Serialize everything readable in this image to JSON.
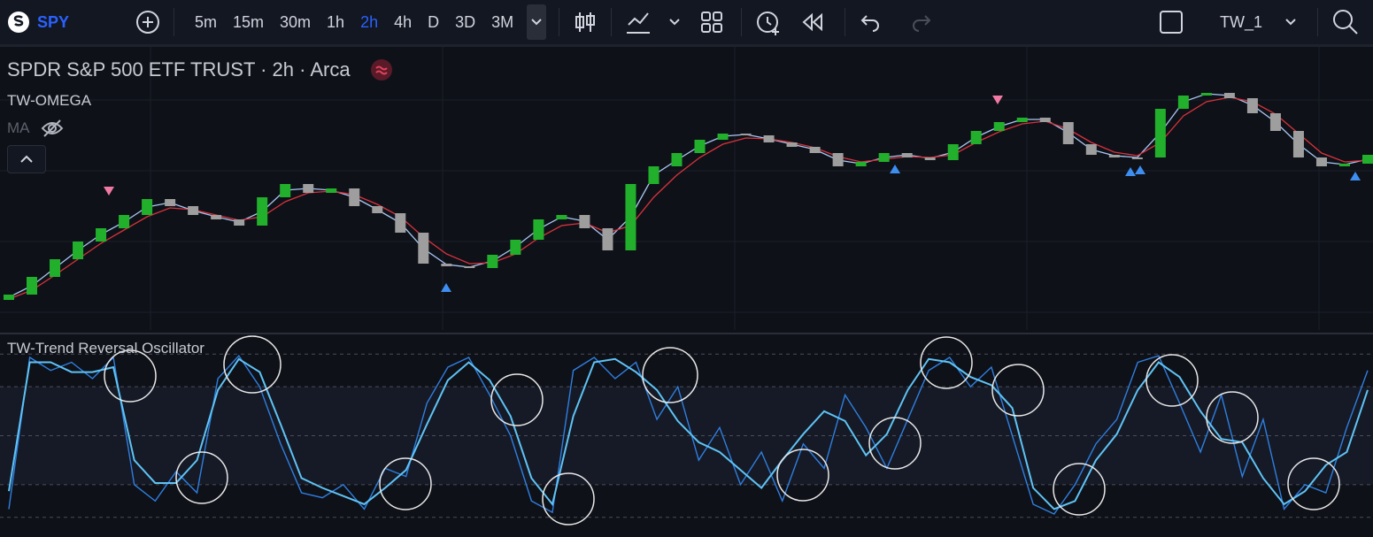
{
  "toolbar": {
    "symbol": "SPY",
    "intervals": [
      "5m",
      "15m",
      "30m",
      "1h",
      "2h",
      "4h",
      "D",
      "3D",
      "3M"
    ],
    "layout": "TW_1"
  },
  "legend": {
    "title": "SPDR S&P 500 ETF TRUST · 2h · Arca",
    "indicator": "TW-OMEGA",
    "ma": "MA",
    "oscillator": "TW-Trend Reversal Oscillator"
  },
  "chart_data": [
    {
      "type": "candlestick",
      "up_color": "#22b02c",
      "down_color": "#9e9e9e",
      "ylim": [
        0,
        300
      ],
      "open": [
        14,
        20,
        40,
        60,
        80,
        95,
        110,
        128,
        120,
        110,
        105,
        98,
        130,
        145,
        135,
        140,
        120,
        112,
        90,
        55,
        52,
        50,
        65,
        82,
        105,
        110,
        95,
        70,
        145,
        165,
        180,
        195,
        202,
        200,
        192,
        187,
        180,
        165,
        170,
        180,
        175,
        172,
        190,
        205,
        215,
        220,
        215,
        190,
        178,
        175,
        175,
        230,
        245,
        248,
        242,
        225,
        205,
        175,
        165,
        168
      ],
      "close": [
        20,
        40,
        60,
        80,
        95,
        110,
        128,
        120,
        110,
        105,
        98,
        130,
        145,
        135,
        140,
        120,
        112,
        90,
        55,
        52,
        50,
        65,
        82,
        105,
        110,
        95,
        70,
        145,
        165,
        180,
        195,
        202,
        200,
        192,
        187,
        180,
        165,
        170,
        180,
        175,
        172,
        190,
        205,
        215,
        220,
        215,
        190,
        178,
        175,
        175,
        230,
        245,
        248,
        242,
        225,
        205,
        175,
        165,
        168,
        178
      ],
      "series": [
        {
          "color": "#a9c8f5",
          "values": [
            17,
            30,
            50,
            70,
            88,
            102,
            119,
            124,
            115,
            108,
            102,
            114,
            138,
            140,
            138,
            130,
            116,
            101,
            72,
            54,
            51,
            58,
            74,
            94,
            108,
            103,
            82,
            108,
            155,
            172,
            188,
            199,
            201,
            196,
            190,
            184,
            172,
            168,
            175,
            178,
            174,
            181,
            198,
            210,
            218,
            218,
            203,
            184,
            177,
            175,
            203,
            238,
            247,
            245,
            234,
            215,
            190,
            170,
            167,
            173
          ]
        },
        {
          "color": "#d9323c",
          "values": [
            15,
            25,
            42,
            60,
            78,
            93,
            108,
            118,
            116,
            110,
            104,
            108,
            125,
            135,
            137,
            133,
            122,
            108,
            85,
            66,
            55,
            56,
            66,
            84,
            98,
            101,
            90,
            98,
            130,
            155,
            175,
            190,
            197,
            196,
            192,
            186,
            176,
            170,
            173,
            176,
            175,
            178,
            192,
            204,
            213,
            216,
            207,
            192,
            181,
            177,
            192,
            222,
            238,
            243,
            238,
            224,
            202,
            180,
            170,
            172
          ]
        }
      ]
    },
    {
      "type": "line",
      "ylim": [
        -11,
        111
      ],
      "yticks": [
        0,
        20,
        50,
        80,
        100
      ],
      "series": [
        {
          "color": "#2f7fe0",
          "values": [
            5,
            98,
            90,
            95,
            85,
            98,
            20,
            10,
            28,
            15,
            85,
            99,
            80,
            45,
            15,
            12,
            20,
            5,
            30,
            25,
            70,
            92,
            98,
            75,
            50,
            10,
            3,
            90,
            98,
            85,
            95,
            60,
            80,
            35,
            55,
            20,
            40,
            10,
            45,
            30,
            75,
            55,
            30,
            60,
            90,
            98,
            80,
            92,
            50,
            8,
            2,
            20,
            45,
            60,
            95,
            99,
            70,
            40,
            75,
            25,
            60,
            5,
            20,
            15,
            55,
            90
          ]
        },
        {
          "color": "#5fc3f5",
          "values": [
            16,
            95,
            95,
            89,
            89,
            92,
            35,
            21,
            21,
            35,
            78,
            97,
            89,
            57,
            24,
            18,
            13,
            8,
            18,
            29,
            57,
            84,
            95,
            84,
            62,
            24,
            8,
            62,
            95,
            97,
            89,
            78,
            59,
            46,
            40,
            29,
            18,
            35,
            51,
            65,
            59,
            38,
            51,
            78,
            97,
            95,
            86,
            81,
            67,
            18,
            5,
            10,
            35,
            51,
            78,
            95,
            86,
            65,
            48,
            46,
            24,
            8,
            16,
            32,
            40,
            78
          ]
        }
      ]
    }
  ]
}
